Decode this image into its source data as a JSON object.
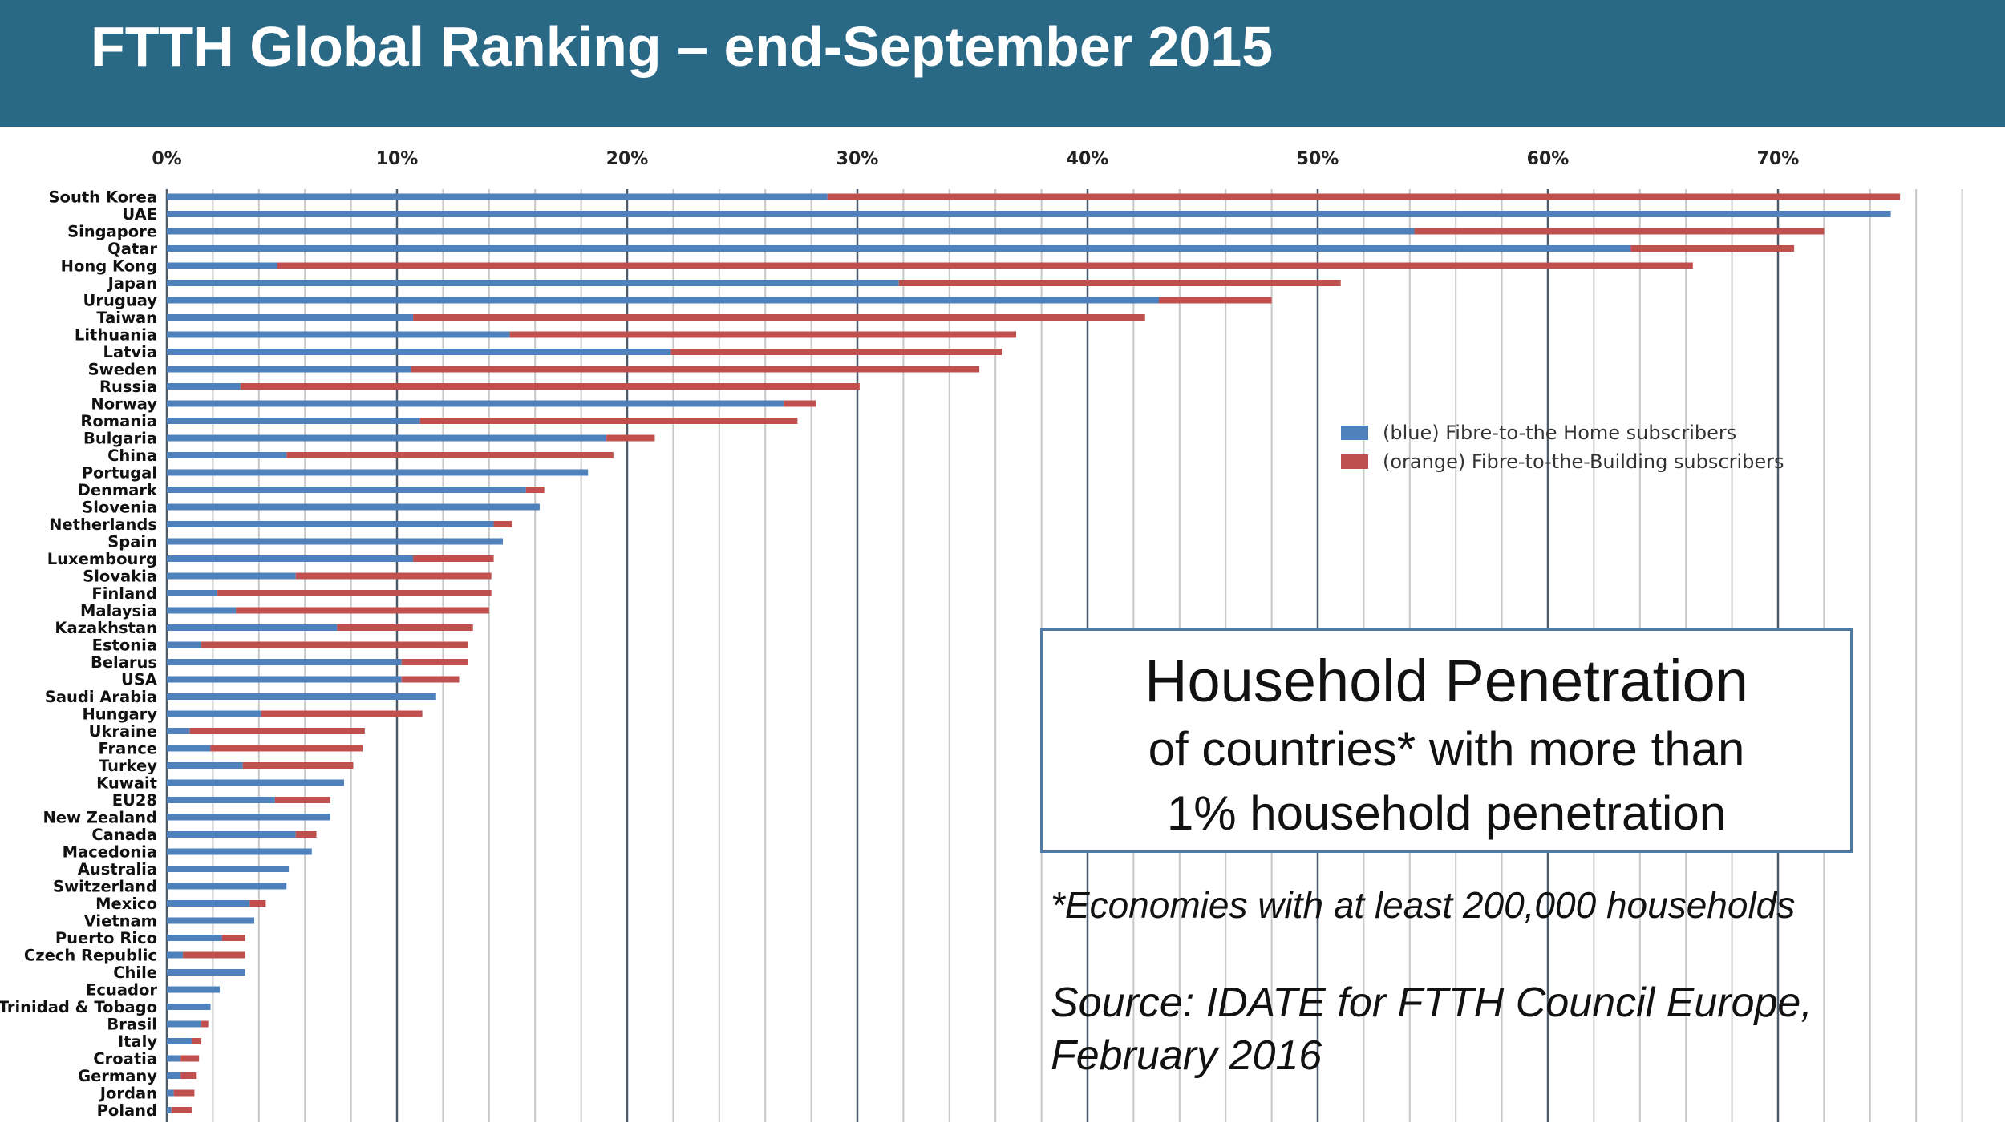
{
  "page": {
    "title": "FTTH Global Ranking – end-September 2015"
  },
  "info_box": {
    "title": "Household Penetration",
    "line1": "of countries* with more than",
    "line2": "1% household penetration"
  },
  "footnote": "*Economies with at least 200,000 households",
  "source": {
    "line1": "Source: IDATE for FTTH Council Europe,",
    "line2": "February 2016"
  },
  "colors": {
    "header": "#2a6986",
    "ftth": "#4f81bd",
    "fttb": "#c0504d",
    "grid": "#c8c8c8",
    "major_grid": "#4d5a6a"
  },
  "chart_data": {
    "type": "bar",
    "orientation": "horizontal",
    "stacked": true,
    "xlim": [
      0,
      78
    ],
    "x_ticks": [
      0,
      10,
      20,
      30,
      40,
      50,
      60,
      70
    ],
    "x_tick_labels": [
      "0%",
      "10%",
      "20%",
      "30%",
      "40%",
      "50%",
      "60%",
      "70%"
    ],
    "legend_position": "right",
    "categories": [
      "South Korea",
      "UAE",
      "Singapore",
      "Qatar",
      "Hong Kong",
      "Japan",
      "Uruguay",
      "Taiwan",
      "Lithuania",
      "Latvia",
      "Sweden",
      "Russia",
      "Norway",
      "Romania",
      "Bulgaria",
      "China",
      "Portugal",
      "Denmark",
      "Slovenia",
      "Netherlands",
      "Spain",
      "Luxembourg",
      "Slovakia",
      "Finland",
      "Malaysia",
      "Kazakhstan",
      "Estonia",
      "Belarus",
      "USA",
      "Saudi Arabia",
      "Hungary",
      "Ukraine",
      "France",
      "Turkey",
      "Kuwait",
      "EU28",
      "New Zealand",
      "Canada",
      "Macedonia",
      "Australia",
      "Switzerland",
      "Mexico",
      "Vietnam",
      "Puerto Rico",
      "Czech Republic",
      "Chile",
      "Ecuador",
      "Trinidad & Tobago",
      "Brasil",
      "Italy",
      "Croatia",
      "Germany",
      "Jordan",
      "Poland"
    ],
    "series": [
      {
        "name": "(blue) Fibre-to-the Home subscribers",
        "values": [
          28.7,
          74.9,
          54.2,
          63.6,
          4.8,
          31.8,
          43.1,
          10.7,
          14.9,
          21.9,
          10.6,
          3.2,
          26.8,
          11.0,
          19.1,
          5.2,
          18.3,
          15.6,
          16.2,
          14.2,
          14.6,
          10.7,
          5.6,
          2.2,
          3.0,
          7.4,
          1.5,
          10.2,
          10.2,
          11.7,
          4.1,
          1.0,
          1.9,
          3.3,
          7.7,
          4.7,
          7.1,
          5.6,
          6.3,
          5.3,
          5.2,
          3.6,
          3.8,
          2.4,
          0.7,
          3.4,
          2.3,
          1.9,
          1.5,
          1.1,
          0.6,
          0.6,
          0.3,
          0.2
        ]
      },
      {
        "name": "(orange) Fibre-to-the-Building subscribers",
        "values": [
          46.6,
          0.0,
          17.8,
          7.1,
          61.5,
          19.2,
          4.9,
          31.8,
          22.0,
          14.4,
          24.7,
          26.9,
          1.4,
          16.4,
          2.1,
          14.2,
          0.0,
          0.8,
          0.0,
          0.8,
          0.0,
          3.5,
          8.5,
          11.9,
          11.0,
          5.9,
          11.6,
          2.9,
          2.5,
          0.0,
          7.0,
          7.6,
          6.6,
          4.8,
          0.0,
          2.4,
          0.0,
          0.9,
          0.0,
          0.0,
          0.0,
          0.7,
          0.0,
          1.0,
          2.7,
          0.0,
          0.0,
          0.0,
          0.3,
          0.4,
          0.8,
          0.7,
          0.9,
          0.9
        ]
      }
    ]
  }
}
